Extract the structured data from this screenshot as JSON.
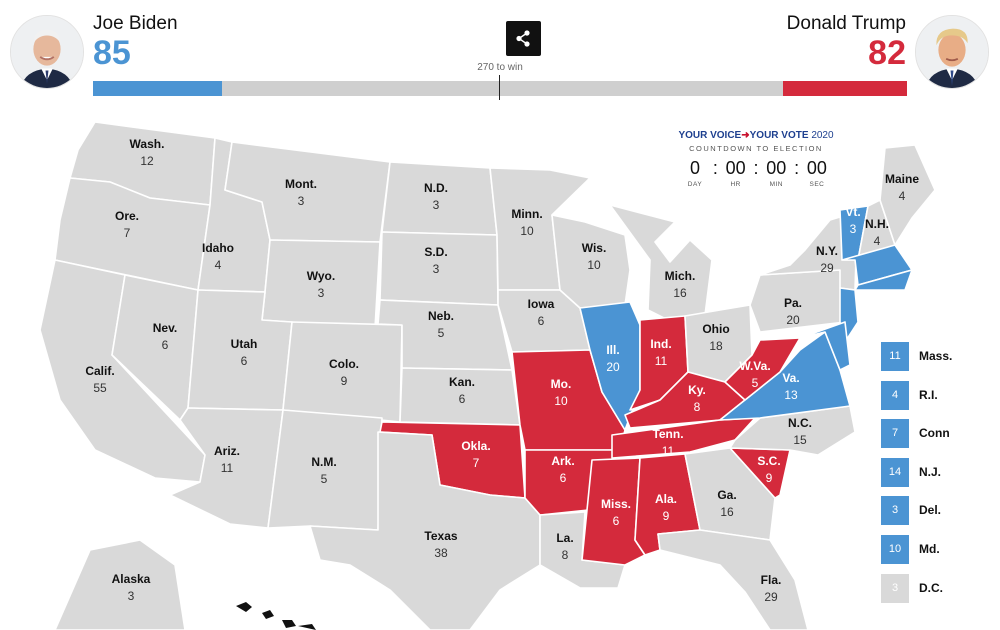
{
  "header": {
    "left_candidate": {
      "name": "Joe Biden",
      "votes": "85"
    },
    "right_candidate": {
      "name": "Donald Trump",
      "votes": "82"
    },
    "win_label": "270 to win",
    "share_icon": "share-icon"
  },
  "progress": {
    "dem_votes": 85,
    "rep_votes": 82,
    "total": 538
  },
  "colors": {
    "dem": "#4b94d3",
    "rep": "#d42a3c",
    "toss": "#d9d9d9",
    "border": "#ffffff"
  },
  "countdown": {
    "brand_part1": "YOUR VOICE",
    "brand_part2": "YOUR VOTE",
    "brand_year": "2020",
    "subtitle": "COUNTDOWN TO ELECTION",
    "units": [
      {
        "value": "0",
        "label": "DAY"
      },
      {
        "value": "00",
        "label": "HR"
      },
      {
        "value": "00",
        "label": "MIN"
      },
      {
        "value": "00",
        "label": "SEC"
      }
    ]
  },
  "states": [
    {
      "id": "wash",
      "abbr": "Wash.",
      "votes": "12",
      "status": "toss"
    },
    {
      "id": "ore",
      "abbr": "Ore.",
      "votes": "7",
      "status": "toss"
    },
    {
      "id": "calif",
      "abbr": "Calif.",
      "votes": "55",
      "status": "toss"
    },
    {
      "id": "idaho",
      "abbr": "Idaho",
      "votes": "4",
      "status": "toss"
    },
    {
      "id": "nev",
      "abbr": "Nev.",
      "votes": "6",
      "status": "toss"
    },
    {
      "id": "mont",
      "abbr": "Mont.",
      "votes": "3",
      "status": "toss"
    },
    {
      "id": "wyo",
      "abbr": "Wyo.",
      "votes": "3",
      "status": "toss"
    },
    {
      "id": "utah",
      "abbr": "Utah",
      "votes": "6",
      "status": "toss"
    },
    {
      "id": "colo",
      "abbr": "Colo.",
      "votes": "9",
      "status": "toss"
    },
    {
      "id": "ariz",
      "abbr": "Ariz.",
      "votes": "11",
      "status": "toss"
    },
    {
      "id": "nm",
      "abbr": "N.M.",
      "votes": "5",
      "status": "toss"
    },
    {
      "id": "nd",
      "abbr": "N.D.",
      "votes": "3",
      "status": "toss"
    },
    {
      "id": "sd",
      "abbr": "S.D.",
      "votes": "3",
      "status": "toss"
    },
    {
      "id": "neb",
      "abbr": "Neb.",
      "votes": "5",
      "status": "toss"
    },
    {
      "id": "kan",
      "abbr": "Kan.",
      "votes": "6",
      "status": "toss"
    },
    {
      "id": "okla",
      "abbr": "Okla.",
      "votes": "7",
      "status": "rep"
    },
    {
      "id": "texas",
      "abbr": "Texas",
      "votes": "38",
      "status": "toss"
    },
    {
      "id": "minn",
      "abbr": "Minn.",
      "votes": "10",
      "status": "toss"
    },
    {
      "id": "iowa",
      "abbr": "Iowa",
      "votes": "6",
      "status": "toss"
    },
    {
      "id": "mo",
      "abbr": "Mo.",
      "votes": "10",
      "status": "rep"
    },
    {
      "id": "ark",
      "abbr": "Ark.",
      "votes": "6",
      "status": "rep"
    },
    {
      "id": "la",
      "abbr": "La.",
      "votes": "8",
      "status": "toss"
    },
    {
      "id": "wis",
      "abbr": "Wis.",
      "votes": "10",
      "status": "toss"
    },
    {
      "id": "ill",
      "abbr": "Ill.",
      "votes": "20",
      "status": "dem"
    },
    {
      "id": "mich",
      "abbr": "Mich.",
      "votes": "16",
      "status": "toss"
    },
    {
      "id": "ind",
      "abbr": "Ind.",
      "votes": "11",
      "status": "rep"
    },
    {
      "id": "ohio",
      "abbr": "Ohio",
      "votes": "18",
      "status": "toss"
    },
    {
      "id": "ky",
      "abbr": "Ky.",
      "votes": "8",
      "status": "rep"
    },
    {
      "id": "tenn",
      "abbr": "Tenn.",
      "votes": "11",
      "status": "rep"
    },
    {
      "id": "miss",
      "abbr": "Miss.",
      "votes": "6",
      "status": "rep"
    },
    {
      "id": "ala",
      "abbr": "Ala.",
      "votes": "9",
      "status": "rep"
    },
    {
      "id": "ga",
      "abbr": "Ga.",
      "votes": "16",
      "status": "toss"
    },
    {
      "id": "fla",
      "abbr": "Fla.",
      "votes": "29",
      "status": "toss"
    },
    {
      "id": "sc",
      "abbr": "S.C.",
      "votes": "9",
      "status": "rep"
    },
    {
      "id": "nc",
      "abbr": "N.C.",
      "votes": "15",
      "status": "toss"
    },
    {
      "id": "va",
      "abbr": "Va.",
      "votes": "13",
      "status": "dem"
    },
    {
      "id": "wva",
      "abbr": "W.Va.",
      "votes": "5",
      "status": "rep"
    },
    {
      "id": "pa",
      "abbr": "Pa.",
      "votes": "20",
      "status": "toss"
    },
    {
      "id": "ny",
      "abbr": "N.Y.",
      "votes": "29",
      "status": "toss"
    },
    {
      "id": "vt",
      "abbr": "Vt.",
      "votes": "3",
      "status": "dem"
    },
    {
      "id": "nh",
      "abbr": "N.H.",
      "votes": "4",
      "status": "toss"
    },
    {
      "id": "maine",
      "abbr": "Maine",
      "votes": "4",
      "status": "toss"
    },
    {
      "id": "alaska",
      "abbr": "Alaska",
      "votes": "3",
      "status": "toss"
    }
  ],
  "small_states": [
    {
      "abbr": "Mass.",
      "votes": "11",
      "status": "dem"
    },
    {
      "abbr": "R.I.",
      "votes": "4",
      "status": "dem"
    },
    {
      "abbr": "Conn",
      "votes": "7",
      "status": "dem"
    },
    {
      "abbr": "N.J.",
      "votes": "14",
      "status": "dem"
    },
    {
      "abbr": "Del.",
      "votes": "3",
      "status": "dem"
    },
    {
      "abbr": "Md.",
      "votes": "10",
      "status": "dem"
    },
    {
      "abbr": "D.C.",
      "votes": "3",
      "status": "toss"
    }
  ]
}
